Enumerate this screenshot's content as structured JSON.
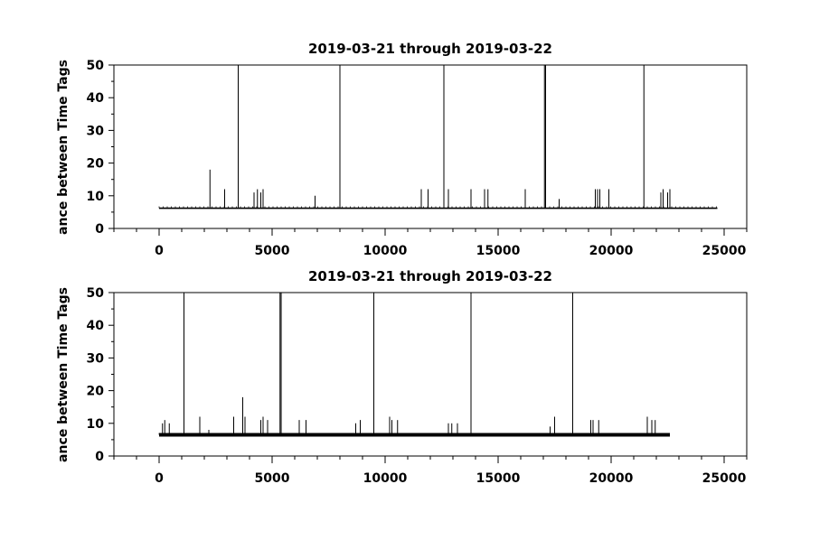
{
  "chart_data": [
    {
      "type": "line",
      "title": "2019-03-21 through 2019-03-22",
      "ylabel": "ance between Time Tags",
      "xlabel": "",
      "xlim": [
        -2000,
        26000
      ],
      "ylim": [
        0,
        50
      ],
      "xticks": [
        0,
        5000,
        10000,
        15000,
        20000,
        25000
      ],
      "yticks": [
        0,
        10,
        20,
        30,
        40,
        50
      ],
      "grid": false,
      "legend": "none",
      "baseline": 6.2,
      "x_end": 24700,
      "spikes": [
        {
          "x": 2250,
          "y": 18
        },
        {
          "x": 2900,
          "y": 12
        },
        {
          "x": 3500,
          "y": 50
        },
        {
          "x": 4200,
          "y": 11
        },
        {
          "x": 4350,
          "y": 12
        },
        {
          "x": 4500,
          "y": 11
        },
        {
          "x": 4600,
          "y": 12
        },
        {
          "x": 6900,
          "y": 10
        },
        {
          "x": 8000,
          "y": 50
        },
        {
          "x": 11600,
          "y": 12
        },
        {
          "x": 11900,
          "y": 12
        },
        {
          "x": 12600,
          "y": 50
        },
        {
          "x": 12800,
          "y": 12
        },
        {
          "x": 13800,
          "y": 12
        },
        {
          "x": 14400,
          "y": 12
        },
        {
          "x": 14550,
          "y": 12
        },
        {
          "x": 16200,
          "y": 12
        },
        {
          "x": 17050,
          "y": 50
        },
        {
          "x": 17100,
          "y": 50
        },
        {
          "x": 17700,
          "y": 9
        },
        {
          "x": 19300,
          "y": 12
        },
        {
          "x": 19400,
          "y": 12
        },
        {
          "x": 19500,
          "y": 12
        },
        {
          "x": 19900,
          "y": 12
        },
        {
          "x": 21450,
          "y": 50
        },
        {
          "x": 22200,
          "y": 11
        },
        {
          "x": 22300,
          "y": 12
        },
        {
          "x": 22500,
          "y": 11
        },
        {
          "x": 22600,
          "y": 12
        }
      ]
    },
    {
      "type": "line",
      "title": "2019-03-21 through 2019-03-22",
      "ylabel": "ance between Time Tags",
      "xlabel": "",
      "xlim": [
        -2000,
        26000
      ],
      "ylim": [
        0,
        50
      ],
      "xticks": [
        0,
        5000,
        10000,
        15000,
        20000,
        25000
      ],
      "yticks": [
        0,
        10,
        20,
        30,
        40,
        50
      ],
      "grid": false,
      "legend": "none",
      "baseline": 6.5,
      "x_end": 22600,
      "spikes": [
        {
          "x": 150,
          "y": 10
        },
        {
          "x": 250,
          "y": 11
        },
        {
          "x": 450,
          "y": 10
        },
        {
          "x": 1100,
          "y": 50
        },
        {
          "x": 1800,
          "y": 12
        },
        {
          "x": 2200,
          "y": 8
        },
        {
          "x": 3300,
          "y": 12
        },
        {
          "x": 3700,
          "y": 18
        },
        {
          "x": 3800,
          "y": 12
        },
        {
          "x": 4500,
          "y": 11
        },
        {
          "x": 4600,
          "y": 12
        },
        {
          "x": 4800,
          "y": 11
        },
        {
          "x": 5350,
          "y": 50
        },
        {
          "x": 5400,
          "y": 50
        },
        {
          "x": 6200,
          "y": 11
        },
        {
          "x": 6500,
          "y": 11
        },
        {
          "x": 8700,
          "y": 10
        },
        {
          "x": 8900,
          "y": 11
        },
        {
          "x": 9500,
          "y": 50
        },
        {
          "x": 10200,
          "y": 12
        },
        {
          "x": 10300,
          "y": 11
        },
        {
          "x": 10550,
          "y": 11
        },
        {
          "x": 12800,
          "y": 10
        },
        {
          "x": 12950,
          "y": 10
        },
        {
          "x": 13200,
          "y": 10
        },
        {
          "x": 13800,
          "y": 50
        },
        {
          "x": 17300,
          "y": 9
        },
        {
          "x": 17500,
          "y": 12
        },
        {
          "x": 18300,
          "y": 50
        },
        {
          "x": 19100,
          "y": 11
        },
        {
          "x": 19200,
          "y": 11
        },
        {
          "x": 19450,
          "y": 11
        },
        {
          "x": 21600,
          "y": 12
        },
        {
          "x": 21800,
          "y": 11
        },
        {
          "x": 21950,
          "y": 11
        }
      ]
    }
  ]
}
